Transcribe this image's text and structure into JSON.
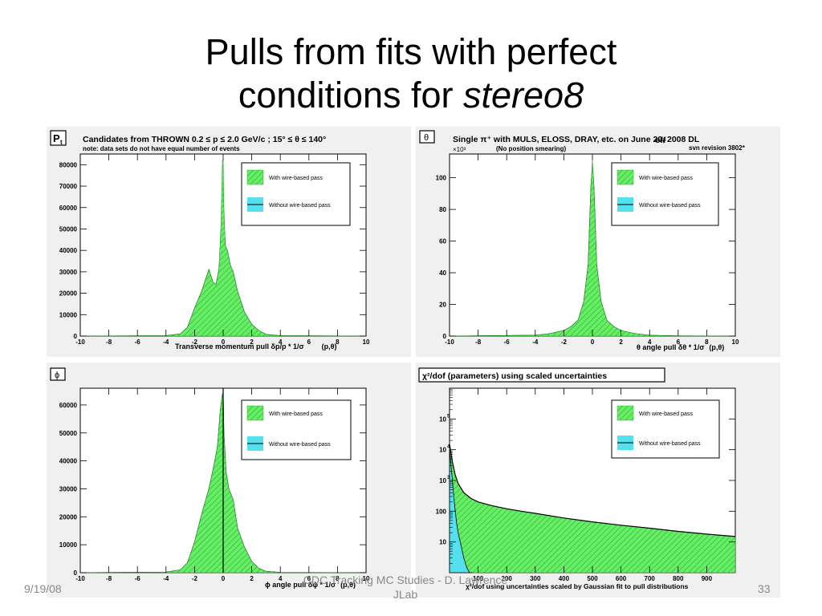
{
  "slide": {
    "title_line1": "Pulls from fits with perfect",
    "title_line2_prefix": "conditions for ",
    "title_line2_italic": "stereo8",
    "footer_date": "9/19/08",
    "footer_center_line1": "CDC Tracking MC Studies    -    D. Lawrence",
    "footer_center_line2": "JLab",
    "footer_page": "33"
  },
  "colors": {
    "green_fill": "#66ee66",
    "green_hatch": "#2eaa2e",
    "cyan_fill": "#55e0ee",
    "panel_bg": "#f0f0f0",
    "frame_bg": "#ffffff"
  },
  "panels": {
    "pt": {
      "label": "P",
      "label_sub": "t",
      "header": "Candidates from THROWN   0.2 ≤ p ≤ 2.0 GeV/c  ;  15° ≤ θ ≤ 140°",
      "note": "note: data sets do not have equal number of events",
      "xlabel": "Transverse momentum pull    δp",
      "xlabel_b": "/p",
      "xlabel_c": " * 1/σ",
      "xlabel_d": "(p,θ)",
      "legend_with": "With wire-based pass",
      "legend_without": "Without wire-based pass"
    },
    "theta": {
      "label": "θ",
      "header": "Single π⁺ with MULS, ELOSS, DRAY, etc.  on     June 20, 2008 DL",
      "header_strike": "off",
      "subnote": "(No position smearing)",
      "revision": "svn revision 3802*",
      "yexp": "×10³",
      "xlabel": "θ angle pull    δθ * 1/σ",
      "xlabel_d": "(p,θ)",
      "legend_with": "With wire-based pass",
      "legend_without": "Without wire-based pass"
    },
    "phi": {
      "label": "ϕ",
      "xlabel": "ϕ angle pull    δϕ * 1/σ",
      "xlabel_d": "(p,θ)",
      "legend_with": "With wire-based pass",
      "legend_without": "Without wire-based pass"
    },
    "chi2": {
      "header": "χ²/dof (parameters) using scaled uncertainties",
      "xlabel": "χ²/dof using uncertainties scaled by Gaussian fit to pull distributions",
      "legend_with": "With wire-based pass",
      "legend_without": "Without wire-based pass"
    }
  },
  "chart_data": [
    {
      "id": "pt",
      "type": "area",
      "xlim": [
        -10,
        10
      ],
      "ylim": [
        0,
        85000
      ],
      "yticks": [
        0,
        10000,
        20000,
        30000,
        40000,
        50000,
        60000,
        70000,
        80000
      ],
      "xticks": [
        -10,
        -8,
        -6,
        -4,
        -2,
        0,
        2,
        4,
        6,
        8,
        10
      ],
      "series": [
        {
          "name": "With wire-based pass",
          "x": [
            -10,
            -4,
            -3,
            -2.5,
            -2,
            -1.5,
            -1,
            -0.7,
            -0.5,
            -0.3,
            -0.15,
            -0.05,
            0,
            0.05,
            0.15,
            0.3,
            0.5,
            0.7,
            1,
            1.5,
            2,
            2.5,
            3,
            4,
            10
          ],
          "values": [
            0,
            200,
            1000,
            4000,
            13000,
            21000,
            31000,
            25000,
            24000,
            31000,
            52000,
            82000,
            82000,
            60000,
            42000,
            40000,
            33000,
            30000,
            21000,
            11000,
            5500,
            2500,
            800,
            200,
            0
          ]
        },
        {
          "name": "Without wire-based pass",
          "x": [
            -10,
            -4,
            -3,
            -2.5,
            -2,
            -1.5,
            -1,
            -0.7,
            -0.5,
            -0.3,
            -0.15,
            -0.05,
            0,
            0.05,
            0.15,
            0.3,
            0.5,
            0.7,
            1,
            1.5,
            2,
            2.5,
            3,
            4,
            10
          ],
          "values": [
            0,
            200,
            1000,
            4000,
            13000,
            21000,
            31000,
            25000,
            24000,
            31000,
            45000,
            60000,
            60000,
            55000,
            42000,
            40000,
            33000,
            30000,
            21000,
            11000,
            5500,
            2500,
            800,
            200,
            0
          ]
        }
      ]
    },
    {
      "id": "theta",
      "type": "area",
      "xlim": [
        -10,
        10
      ],
      "ylim": [
        0,
        115
      ],
      "y_multiplier": 1000,
      "yticks": [
        0,
        20,
        40,
        60,
        80,
        100
      ],
      "xticks": [
        -10,
        -8,
        -6,
        -4,
        -2,
        0,
        2,
        4,
        6,
        8,
        10
      ],
      "series": [
        {
          "name": "With wire-based pass",
          "x": [
            -10,
            -4,
            -3,
            -2,
            -1.5,
            -1,
            -0.6,
            -0.3,
            -0.1,
            0,
            0.1,
            0.3,
            0.6,
            1,
            1.5,
            2,
            3,
            4,
            6,
            10
          ],
          "values": [
            0,
            0.5,
            1.5,
            3.5,
            6,
            10,
            22,
            45,
            95,
            111,
            95,
            45,
            22,
            10,
            6,
            3.5,
            1.5,
            0.5,
            0.1,
            0
          ]
        },
        {
          "name": "Without wire-based pass",
          "x": [
            -10,
            -4,
            -3,
            -2,
            -1.5,
            -1,
            -0.6,
            -0.3,
            -0.1,
            0,
            0.1,
            0.3,
            0.6,
            1,
            1.5,
            2,
            3,
            4,
            6,
            10
          ],
          "values": [
            0,
            0.5,
            1.5,
            3.5,
            6,
            10,
            22,
            45,
            95,
            108,
            95,
            45,
            22,
            10,
            6,
            3.5,
            1.5,
            0.5,
            0.1,
            0
          ]
        }
      ]
    },
    {
      "id": "phi",
      "type": "area",
      "xlim": [
        -10,
        10
      ],
      "ylim": [
        0,
        66000
      ],
      "yticks": [
        0,
        10000,
        20000,
        30000,
        40000,
        50000,
        60000
      ],
      "xticks": [
        -10,
        -8,
        -6,
        -4,
        -2,
        0,
        2,
        4,
        6,
        8,
        10
      ],
      "series": [
        {
          "name": "With wire-based pass",
          "x": [
            -10,
            -4,
            -3,
            -2.5,
            -2,
            -1.5,
            -1,
            -0.7,
            -0.4,
            -0.2,
            -0.05,
            0,
            0.05,
            0.2,
            0.4,
            0.7,
            1,
            1.5,
            2,
            2.5,
            3,
            4,
            10
          ],
          "values": [
            0,
            200,
            1000,
            3500,
            11000,
            21000,
            30000,
            37000,
            45000,
            58000,
            64000,
            64000,
            50000,
            36000,
            30000,
            26000,
            16000,
            9000,
            4000,
            1500,
            500,
            100,
            0
          ]
        },
        {
          "name": "Without wire-based pass",
          "x": [
            -10,
            -4,
            -3,
            -2.5,
            -2,
            -1.5,
            -1,
            -0.7,
            -0.4,
            -0.2,
            -0.05,
            0,
            0.05,
            0.2,
            0.4,
            0.7,
            1,
            1.5,
            2,
            2.5,
            3,
            4,
            10
          ],
          "values": [
            0,
            200,
            1000,
            3500,
            11000,
            21000,
            30000,
            37000,
            45000,
            58000,
            64000,
            64000,
            50000,
            36000,
            30000,
            26000,
            16000,
            9000,
            4000,
            1500,
            500,
            100,
            0
          ]
        }
      ]
    },
    {
      "id": "chi2",
      "type": "area",
      "log_y": true,
      "xlim": [
        0,
        1000
      ],
      "ylim": [
        1,
        1000000
      ],
      "yticks": [
        10,
        100,
        1000,
        10000,
        100000
      ],
      "xticks": [
        100,
        200,
        300,
        400,
        500,
        600,
        700,
        800,
        900
      ],
      "series": [
        {
          "name": "With wire-based pass",
          "x": [
            0,
            5,
            10,
            20,
            30,
            50,
            75,
            100,
            150,
            200,
            250,
            300,
            400,
            500,
            600,
            700,
            800,
            900,
            1000
          ],
          "values": [
            15000,
            8000,
            4000,
            1500,
            800,
            400,
            260,
            200,
            150,
            120,
            100,
            85,
            60,
            45,
            35,
            28,
            22,
            18,
            15
          ]
        },
        {
          "name": "Without wire-based pass",
          "x": [
            0,
            5,
            10,
            15,
            20,
            25,
            30,
            40,
            50,
            60,
            70,
            80
          ],
          "values": [
            10000,
            3000,
            1000,
            300,
            100,
            40,
            20,
            8,
            3,
            1.5,
            1,
            1
          ]
        }
      ]
    }
  ]
}
